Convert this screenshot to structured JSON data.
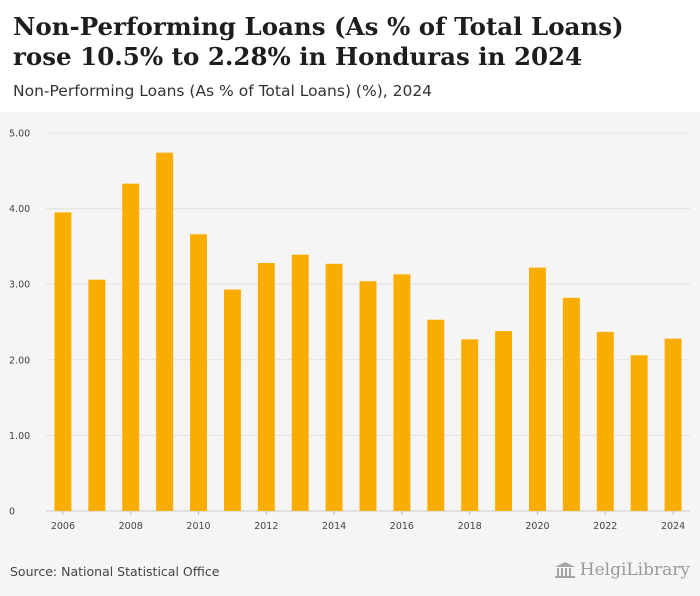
{
  "header": {
    "title": "Non-Performing Loans (As % of Total Loans) rose 10.5% to 2.28% in Honduras in 2024",
    "subtitle": "Non-Performing Loans (As % of Total Loans) (%), 2024"
  },
  "footer": {
    "source": "Source: National Statistical Office",
    "brand": "HelgiLibrary"
  },
  "colors": {
    "bar": "#f9ad00",
    "grid": "#e2e2e2",
    "panel": "#f5f5f5"
  },
  "chart_data": {
    "type": "bar",
    "categories": [
      "2006",
      "2007",
      "2008",
      "2009",
      "2010",
      "2011",
      "2012",
      "2013",
      "2014",
      "2015",
      "2016",
      "2017",
      "2018",
      "2019",
      "2020",
      "2021",
      "2022",
      "2023",
      "2024"
    ],
    "values": [
      3.95,
      3.06,
      4.33,
      4.74,
      3.66,
      2.93,
      3.28,
      3.39,
      3.27,
      3.04,
      3.13,
      2.53,
      2.27,
      2.38,
      3.22,
      2.82,
      2.37,
      2.06,
      2.28
    ],
    "x_tick_labels": [
      "2006",
      "2008",
      "2010",
      "2012",
      "2014",
      "2016",
      "2018",
      "2020",
      "2022",
      "2024"
    ],
    "y_tick_labels": [
      "0",
      "1.00",
      "2.00",
      "3.00",
      "4.00",
      "5.00"
    ],
    "y_ticks": [
      0,
      1,
      2,
      3,
      4,
      5
    ],
    "ylim": [
      0,
      5
    ],
    "grid": true,
    "legend": "none"
  }
}
